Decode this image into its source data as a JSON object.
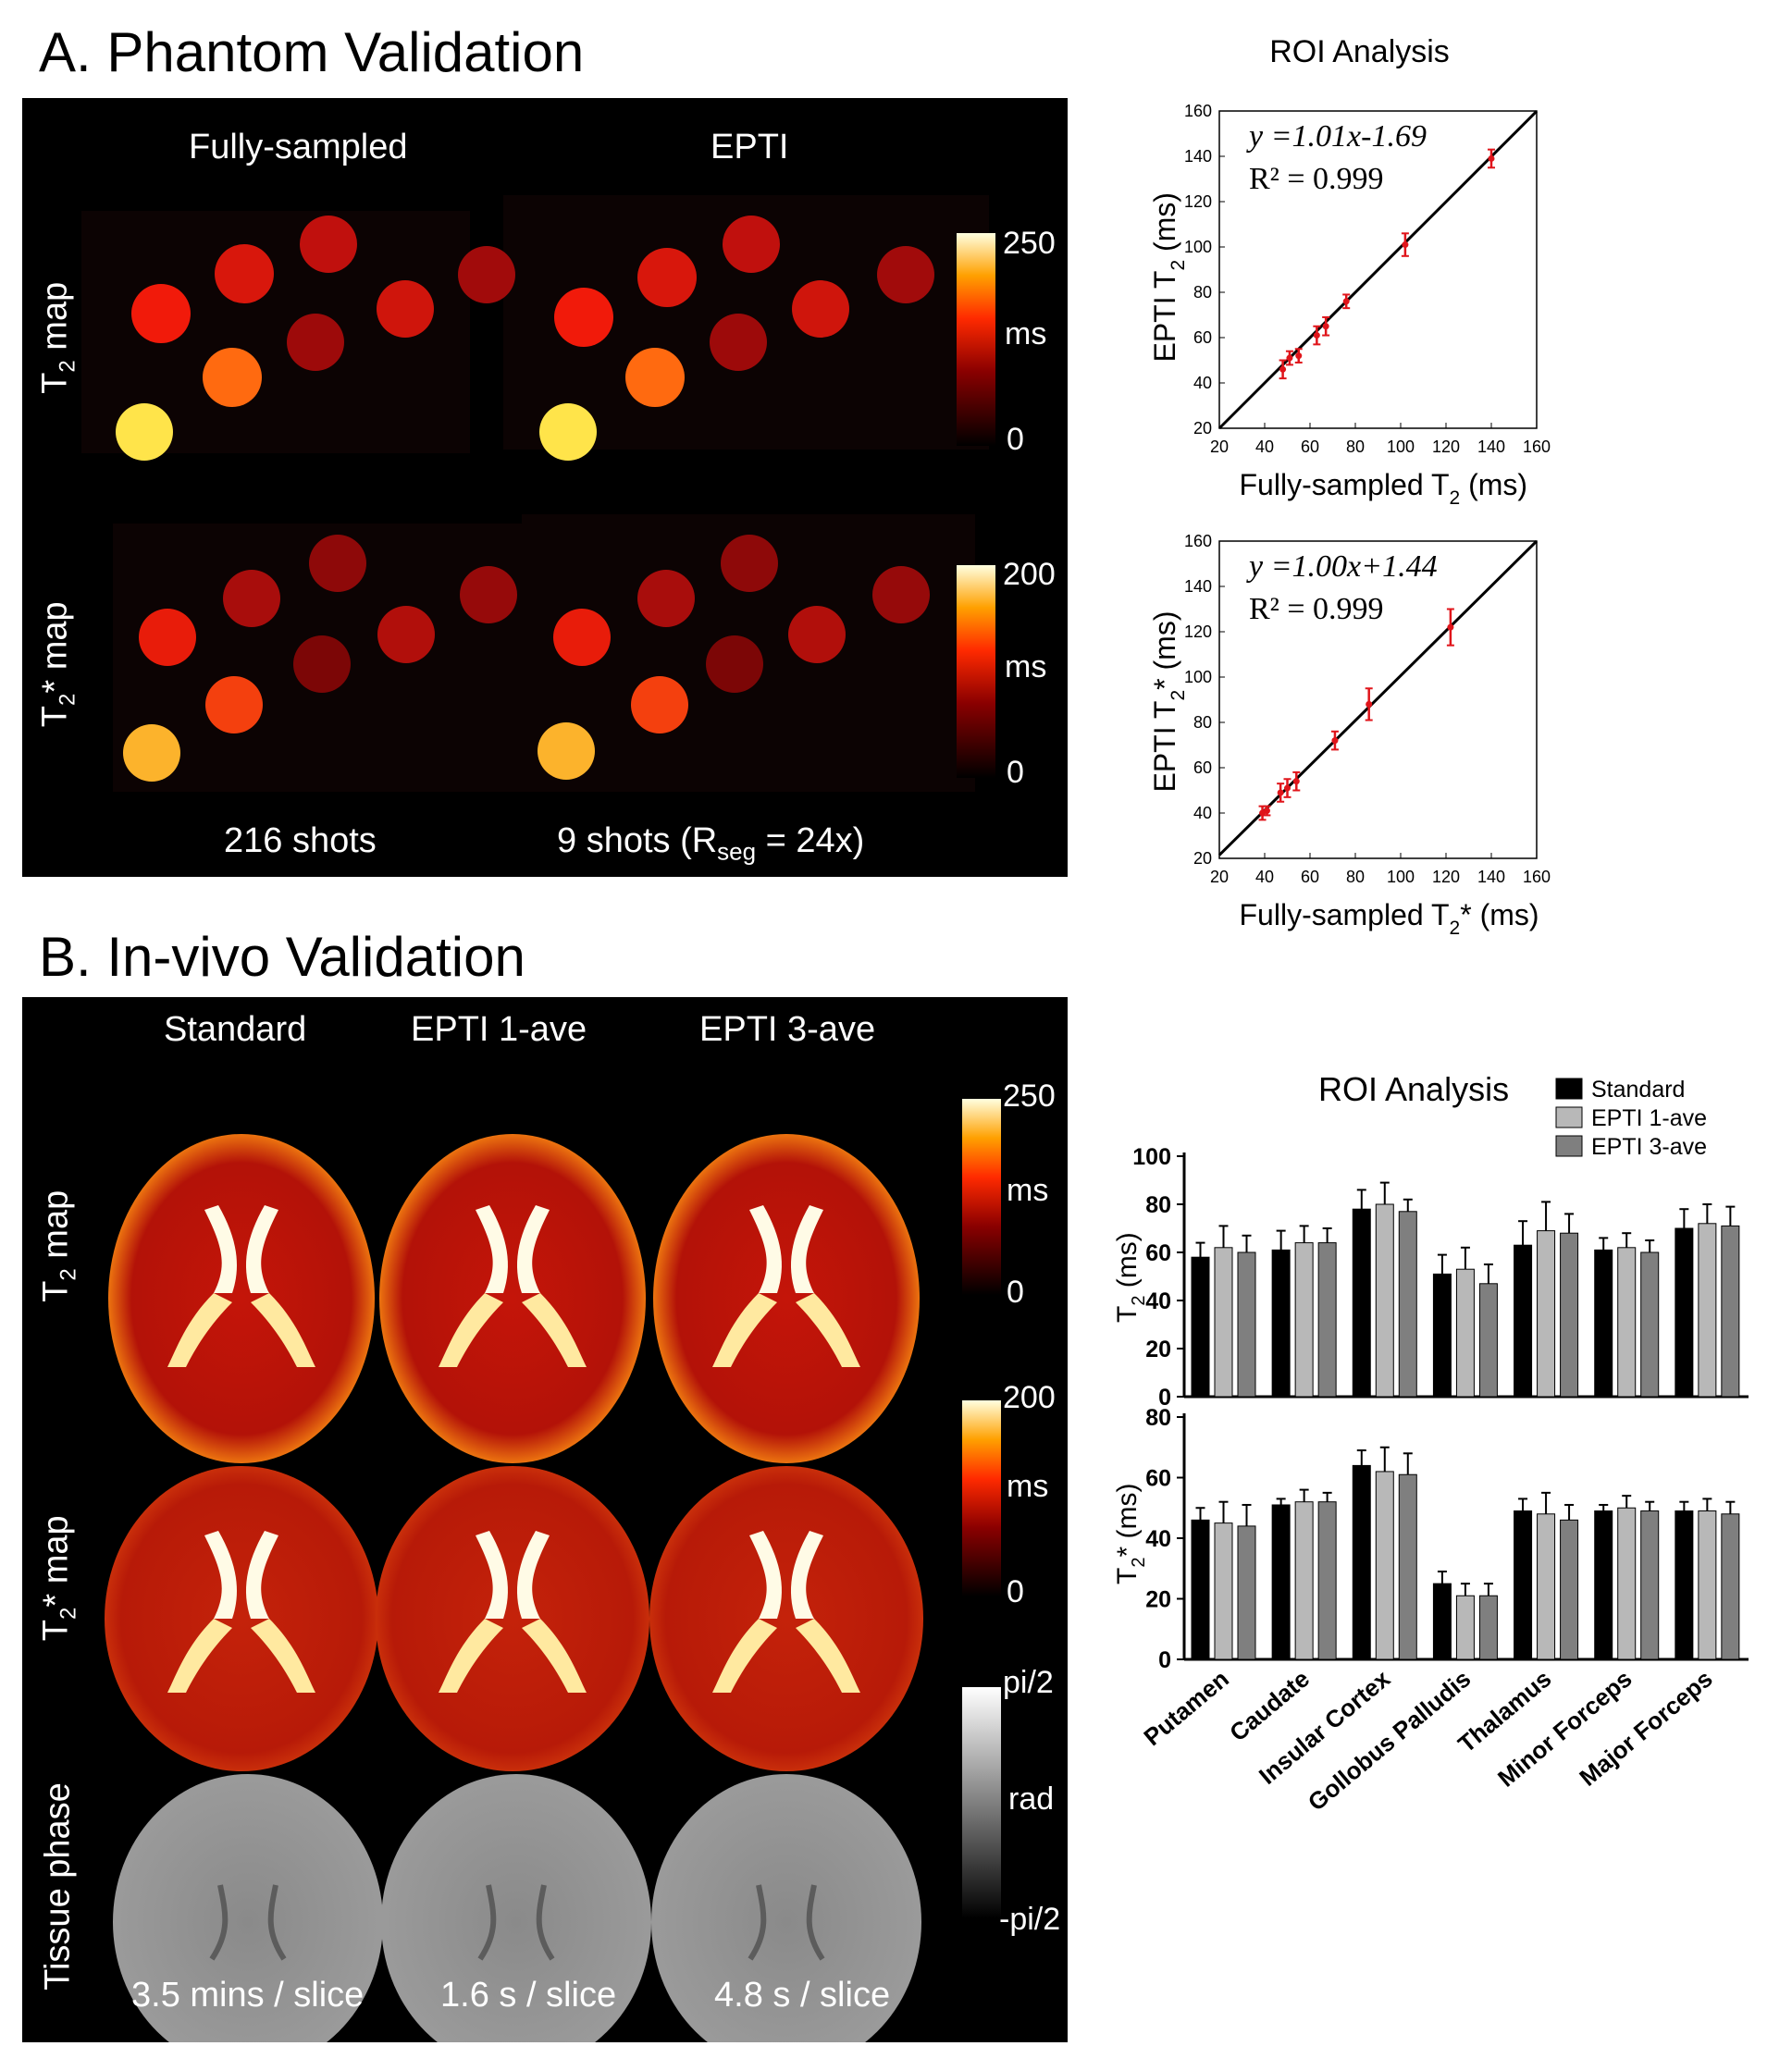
{
  "sectionA": {
    "title": "A. Phantom Validation",
    "col1": "Fully-sampled",
    "col2": "EPTI",
    "row1_main": "T",
    "row1_sub": "2",
    "row1_tail": " map",
    "row2_main": "T",
    "row2_sub": "2",
    "row2_tail": "* map",
    "shots1": "216 shots",
    "shots2_pre": "9 shots (R",
    "shots2_sub": "seg",
    "shots2_post": " = 24x)",
    "cb1": {
      "max": "250",
      "unit": "ms",
      "min": "0"
    },
    "cb2": {
      "max": "200",
      "unit": "ms",
      "min": "0"
    }
  },
  "sectionB": {
    "title": "B. In-vivo Validation",
    "cols": [
      "Standard",
      "EPTI 1-ave",
      "EPTI 3-ave"
    ],
    "row1_main": "T",
    "row1_sub": "2",
    "row1_tail": " map",
    "row2_main": "T",
    "row2_sub": "2",
    "row2_tail": "* map",
    "row3": "Tissue phase",
    "times": [
      "3.5 mins / slice",
      "1.6 s / slice",
      "4.8 s / slice"
    ],
    "cb1": {
      "max": "250",
      "unit": "ms",
      "min": "0"
    },
    "cb2": {
      "max": "200",
      "unit": "ms",
      "min": "0"
    },
    "cb3": {
      "max": "pi/2",
      "unit": "rad",
      "min": "-pi/2"
    }
  },
  "colors": {
    "red": "#e0151b",
    "black": "#000000",
    "lightgray": "#b8b8b8",
    "darkgray": "#7f7f7f"
  },
  "chart_data": [
    {
      "type": "scatter",
      "title": "ROI Analysis",
      "xlabel_main": "Fully-sampled T",
      "xlabel_sub": "2",
      "xlabel_tail": " (ms)",
      "ylabel_main": "EPTI T",
      "ylabel_sub": "2",
      "ylabel_tail": " (ms)",
      "xlim": [
        20,
        160
      ],
      "ylim": [
        20,
        160
      ],
      "ticks": [
        20,
        40,
        60,
        80,
        100,
        120,
        140,
        160
      ],
      "fit_eq": "y =1.01x-1.69",
      "fit_slope": 1.01,
      "fit_intercept": -1.69,
      "r2": "R² = 0.999",
      "points": [
        {
          "x": 48,
          "y": 46,
          "err": 4
        },
        {
          "x": 51,
          "y": 51,
          "err": 3
        },
        {
          "x": 55,
          "y": 52,
          "err": 3
        },
        {
          "x": 63,
          "y": 61,
          "err": 4
        },
        {
          "x": 67,
          "y": 65,
          "err": 4
        },
        {
          "x": 76,
          "y": 76,
          "err": 3
        },
        {
          "x": 102,
          "y": 101,
          "err": 5
        },
        {
          "x": 140,
          "y": 139,
          "err": 4
        }
      ]
    },
    {
      "type": "scatter",
      "title": "",
      "xlabel_main": "Fully-sampled T",
      "xlabel_sub": "2",
      "xlabel_tail": "* (ms)",
      "ylabel_main": "EPTI T",
      "ylabel_sub": "2",
      "ylabel_tail": "* (ms)",
      "xlim": [
        20,
        160
      ],
      "ylim": [
        20,
        160
      ],
      "ticks": [
        20,
        40,
        60,
        80,
        100,
        120,
        140,
        160
      ],
      "fit_eq": "y =1.00x+1.44",
      "fit_slope": 1.0,
      "fit_intercept": 1.44,
      "r2": "R² = 0.999",
      "points": [
        {
          "x": 39,
          "y": 40,
          "err": 3
        },
        {
          "x": 41,
          "y": 41,
          "err": 2
        },
        {
          "x": 47,
          "y": 49,
          "err": 4
        },
        {
          "x": 50,
          "y": 51,
          "err": 4
        },
        {
          "x": 54,
          "y": 54,
          "err": 4
        },
        {
          "x": 71,
          "y": 72,
          "err": 4
        },
        {
          "x": 86,
          "y": 88,
          "err": 7
        },
        {
          "x": 122,
          "y": 122,
          "err": 8
        }
      ]
    },
    {
      "type": "bar",
      "title": "ROI Analysis",
      "legend": [
        "Standard",
        "EPTI 1-ave",
        "EPTI 3-ave"
      ],
      "categories": [
        "Putamen",
        "Caudate",
        "Insular Cortex",
        "Gollobus Palludis",
        "Thalamus",
        "Minor Forceps",
        "Major Forceps"
      ],
      "ylabel_main": "T",
      "ylabel_sub": "2",
      "ylabel_tail": " (ms)",
      "ylim": [
        0,
        100
      ],
      "yticks": [
        0,
        20,
        40,
        60,
        80,
        100
      ],
      "series": [
        {
          "name": "Standard",
          "values": [
            58,
            61,
            78,
            51,
            63,
            61,
            70
          ],
          "err": [
            6,
            8,
            8,
            8,
            10,
            5,
            8
          ]
        },
        {
          "name": "EPTI 1-ave",
          "values": [
            62,
            64,
            80,
            53,
            69,
            62,
            72
          ],
          "err": [
            9,
            7,
            9,
            9,
            12,
            6,
            8
          ]
        },
        {
          "name": "EPTI 3-ave",
          "values": [
            60,
            64,
            77,
            47,
            68,
            60,
            71
          ],
          "err": [
            7,
            6,
            5,
            8,
            8,
            5,
            8
          ]
        }
      ]
    },
    {
      "type": "bar",
      "title": "",
      "categories": [
        "Putamen",
        "Caudate",
        "Insular Cortex",
        "Gollobus Palludis",
        "Thalamus",
        "Minor Forceps",
        "Major Forceps"
      ],
      "ylabel_main": "T",
      "ylabel_sub": "2",
      "ylabel_tail": "* (ms)",
      "ylim": [
        0,
        80
      ],
      "yticks": [
        0,
        20,
        40,
        60,
        80
      ],
      "series": [
        {
          "name": "Standard",
          "values": [
            46,
            51,
            64,
            25,
            49,
            49,
            49
          ],
          "err": [
            4,
            2,
            5,
            4,
            4,
            2,
            3
          ]
        },
        {
          "name": "EPTI 1-ave",
          "values": [
            45,
            52,
            62,
            21,
            48,
            50,
            49
          ],
          "err": [
            7,
            4,
            8,
            4,
            7,
            4,
            4
          ]
        },
        {
          "name": "EPTI 3-ave",
          "values": [
            44,
            52,
            61,
            21,
            46,
            49,
            48
          ],
          "err": [
            7,
            3,
            7,
            4,
            5,
            3,
            4
          ]
        }
      ]
    }
  ]
}
